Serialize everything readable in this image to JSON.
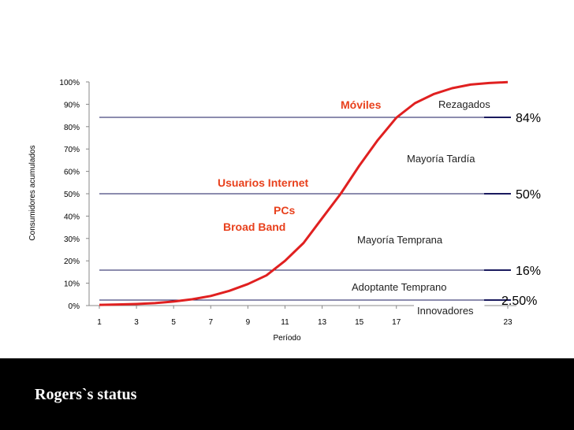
{
  "chart_data": {
    "type": "line",
    "xlabel": "Período",
    "ylabel": "Consumidores acumulados",
    "xlim": [
      1,
      23
    ],
    "ylim": [
      0,
      100
    ],
    "x_ticks": [
      "1",
      "3",
      "5",
      "7",
      "9",
      "11",
      "13",
      "15",
      "17",
      "23"
    ],
    "y_ticks": [
      "0%",
      "10%",
      "20%",
      "30%",
      "40%",
      "50%",
      "60%",
      "70%",
      "80%",
      "90%",
      "100%"
    ],
    "series": [
      {
        "color": "#e02020",
        "x": [
          1,
          2,
          3,
          4,
          5,
          6,
          7,
          8,
          9,
          10,
          11,
          12,
          13,
          14,
          15,
          16,
          17,
          18,
          19,
          20,
          21,
          22,
          23
        ],
        "values": [
          0.3,
          0.5,
          0.7,
          1.1,
          1.8,
          2.8,
          4.3,
          6.6,
          9.6,
          13.5,
          20,
          28,
          39,
          50,
          62.5,
          74,
          84,
          90.5,
          94.5,
          97.2,
          98.8,
          99.5,
          99.9
        ]
      }
    ],
    "reference_lines": [
      {
        "label": "84%",
        "value": 84
      },
      {
        "label": "50%",
        "value": 50
      },
      {
        "label": "16%",
        "value": 16
      },
      {
        "label": "2.50%",
        "value": 2.5
      }
    ],
    "annotations_black": [
      "Rezagados",
      "Mayoría Tardía",
      "Mayoría Temprana",
      "Adoptante Temprano",
      "Innovadores"
    ],
    "annotations_red": [
      "Móviles",
      "Usuarios Internet",
      "PCs",
      "Broad Band"
    ]
  },
  "footer": {
    "title": "Rogers`s status"
  },
  "colors": {
    "curve": "#e02020",
    "ref_line": "#1a1a5e",
    "annotation_red": "#e8401c"
  }
}
